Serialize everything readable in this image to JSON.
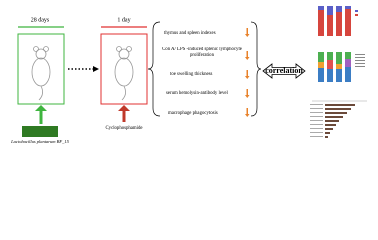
{
  "stages": [
    {
      "duration": "28 days",
      "agent": "Lactobacillus plantarum BF_15"
    },
    {
      "duration": "1 day",
      "agent": "Cyclophosphamide"
    }
  ],
  "indicators": [
    "thymus and spleen indexes",
    "Con A/ LPS -induced splenic lymphocyte proliferation",
    "toe swelling thickness",
    "serum hemolysin-antibody level",
    "macrophage phagocytosis"
  ],
  "link": "correlation"
}
